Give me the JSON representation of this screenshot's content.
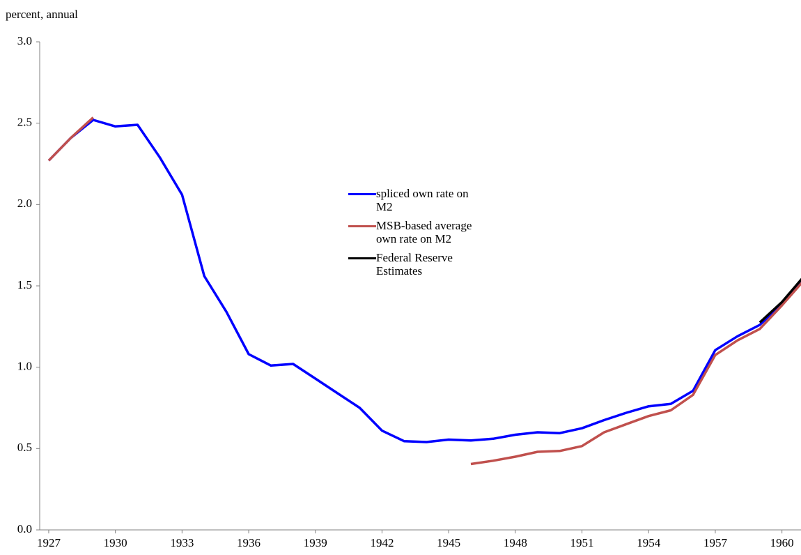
{
  "chart_data": {
    "type": "line",
    "ylabel": "percent, annual",
    "categories": [
      "1927",
      null,
      null,
      "1930",
      null,
      null,
      "1933",
      null,
      null,
      "1936",
      null,
      null,
      "1939",
      null,
      null,
      "1942",
      null,
      null,
      "1945",
      null,
      null,
      "1948",
      null,
      null,
      "1951",
      null,
      null,
      "1954",
      null,
      null,
      "1957",
      null,
      null,
      "1960",
      null
    ],
    "series": [
      {
        "name": "spliced own rate on M2",
        "color": "#0000ff",
        "values": [
          2.27,
          2.41,
          2.52,
          2.48,
          2.49,
          2.29,
          2.06,
          1.56,
          1.34,
          1.08,
          1.01,
          1.02,
          0.93,
          0.84,
          0.75,
          0.61,
          0.545,
          0.54,
          0.555,
          0.55,
          0.56,
          0.585,
          0.6,
          0.595,
          0.625,
          0.675,
          0.72,
          0.76,
          0.775,
          0.855,
          1.105,
          1.19,
          1.26,
          1.39,
          1.55
        ]
      },
      {
        "name": "MSB-based average own rate on M2",
        "color": "#c0504d",
        "values": [
          2.27,
          2.41,
          2.535,
          null,
          null,
          null,
          null,
          null,
          null,
          null,
          null,
          null,
          null,
          null,
          null,
          null,
          null,
          null,
          null,
          0.405,
          0.425,
          0.45,
          0.48,
          0.485,
          0.515,
          0.6,
          0.65,
          0.7,
          0.735,
          0.83,
          1.075,
          1.165,
          1.235,
          1.38,
          1.535
        ]
      },
      {
        "name": "Federal Reserve Estimates",
        "color": "#000000",
        "values": [
          null,
          null,
          null,
          null,
          null,
          null,
          null,
          null,
          null,
          null,
          null,
          null,
          null,
          null,
          null,
          null,
          null,
          null,
          null,
          null,
          null,
          null,
          null,
          null,
          null,
          null,
          null,
          null,
          null,
          null,
          null,
          null,
          1.275,
          1.4,
          1.56
        ]
      }
    ],
    "ylim": [
      0,
      3
    ],
    "yticks": [
      {
        "value": 0,
        "label": "0.0"
      },
      0.5,
      {
        "value": 1,
        "label": "1.0"
      },
      1.5,
      {
        "value": 2,
        "label": "2.0"
      },
      2.5,
      {
        "value": 3,
        "label": "3.0"
      }
    ]
  }
}
